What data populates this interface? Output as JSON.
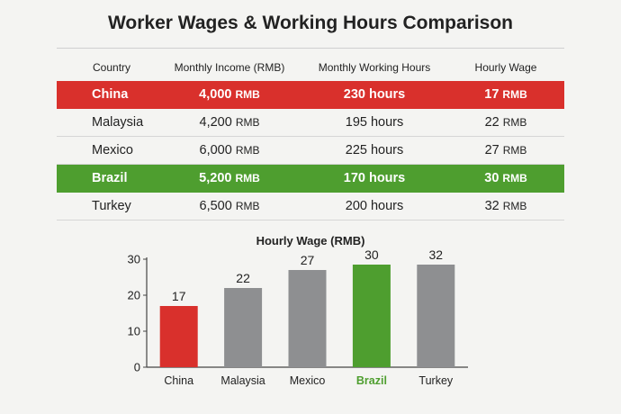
{
  "title": "Worker Wages & Working Hours Comparison",
  "table": {
    "headers": [
      "Country",
      "Monthly Income (RMB)",
      "Monthly Working Hours",
      "Hourly Wage"
    ],
    "rows": [
      {
        "country": "China",
        "income": "4,000",
        "income_unit": "RMB",
        "hours": "230 hours",
        "wage": "17",
        "wage_unit": "RMB",
        "highlight": "red"
      },
      {
        "country": "Malaysia",
        "income": "4,200",
        "income_unit": "RMB",
        "hours": "195 hours",
        "wage": "22",
        "wage_unit": "RMB",
        "highlight": ""
      },
      {
        "country": "Mexico",
        "income": "6,000",
        "income_unit": "RMB",
        "hours": "225 hours",
        "wage": "27",
        "wage_unit": "RMB",
        "highlight": ""
      },
      {
        "country": "Brazil",
        "income": "5,200",
        "income_unit": "RMB",
        "hours": "170 hours",
        "wage": "30",
        "wage_unit": "RMB",
        "highlight": "green"
      },
      {
        "country": "Turkey",
        "income": "6,500",
        "income_unit": "RMB",
        "hours": "200 hours",
        "wage": "32",
        "wage_unit": "RMB",
        "highlight": ""
      }
    ]
  },
  "colors": {
    "red": "#d9302c",
    "green": "#4e9e2f",
    "gray": "#8e8f91",
    "axis": "#444444",
    "text": "#222222"
  },
  "chart_data": {
    "type": "bar",
    "title": "Hourly Wage (RMB)",
    "categories": [
      "China",
      "Malaysia",
      "Mexico",
      "Brazil",
      "Turkey"
    ],
    "values": [
      17,
      22,
      27,
      30,
      32
    ],
    "value_labels": [
      "17",
      "22",
      "27",
      "30",
      "32"
    ],
    "bar_colors": [
      "red",
      "gray",
      "gray",
      "green",
      "gray"
    ],
    "yticks": [
      0,
      10,
      20,
      30
    ],
    "ylim": [
      0,
      30
    ],
    "xlabel": "",
    "ylabel": "",
    "grid": false,
    "legend": "none"
  }
}
